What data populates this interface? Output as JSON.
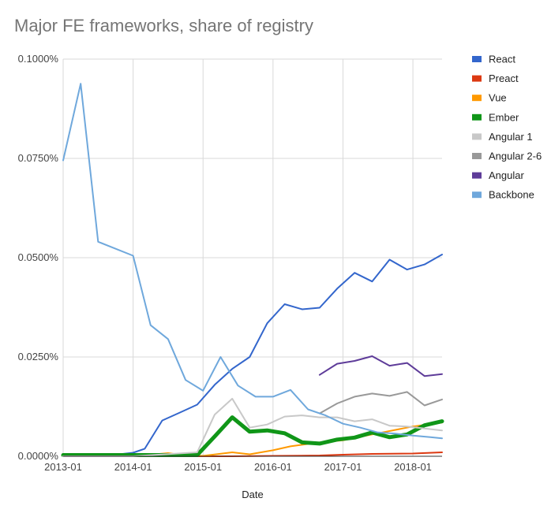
{
  "chart_data": {
    "type": "line",
    "title": "Major FE frameworks, share of registry",
    "xlabel": "Date",
    "ylabel": "",
    "x_ticks": [
      "2013-01",
      "2014-01",
      "2015-01",
      "2016-01",
      "2017-01",
      "2018-01"
    ],
    "y_ticks": [
      "0.0000%",
      "0.0250%",
      "0.0500%",
      "0.0750%",
      "0.1000%"
    ],
    "xlim": [
      "2013-01",
      "2018-06"
    ],
    "ylim": [
      0,
      0.1
    ],
    "grid": true,
    "legend_position": "right",
    "series": [
      {
        "name": "React",
        "color": "#3366cc",
        "points": [
          [
            "2013-01",
            0.0004
          ],
          [
            "2013-04",
            0.0004
          ],
          [
            "2013-07",
            0.0004
          ],
          [
            "2013-10",
            0.0004
          ],
          [
            "2014-01",
            0.0009
          ],
          [
            "2014-03",
            0.0019
          ],
          [
            "2014-06",
            0.009
          ],
          [
            "2014-09",
            0.011
          ],
          [
            "2014-12",
            0.013
          ],
          [
            "2015-03",
            0.018
          ],
          [
            "2015-06",
            0.022
          ],
          [
            "2015-09",
            0.025
          ],
          [
            "2015-12",
            0.0335
          ],
          [
            "2016-03",
            0.0383
          ],
          [
            "2016-06",
            0.037
          ],
          [
            "2016-09",
            0.0374
          ],
          [
            "2016-12",
            0.0422
          ],
          [
            "2017-03",
            0.0462
          ],
          [
            "2017-06",
            0.044
          ],
          [
            "2017-09",
            0.0495
          ],
          [
            "2017-12",
            0.047
          ],
          [
            "2018-03",
            0.0483
          ],
          [
            "2018-06",
            0.0508
          ]
        ]
      },
      {
        "name": "Preact",
        "color": "#dc3912",
        "points": [
          [
            "2013-01",
            0
          ],
          [
            "2014-01",
            0
          ],
          [
            "2015-01",
            0
          ],
          [
            "2015-06",
            0
          ],
          [
            "2016-01",
            0.0001
          ],
          [
            "2016-09",
            0.0002
          ],
          [
            "2017-01",
            0.0004
          ],
          [
            "2017-06",
            0.0006
          ],
          [
            "2018-01",
            0.0007
          ],
          [
            "2018-06",
            0.001
          ]
        ]
      },
      {
        "name": "Vue",
        "color": "#ff9900",
        "points": [
          [
            "2013-01",
            0
          ],
          [
            "2014-01",
            0
          ],
          [
            "2014-07",
            0.0008
          ],
          [
            "2014-10",
            0.0002
          ],
          [
            "2015-01",
            0.0001
          ],
          [
            "2015-06",
            0.001
          ],
          [
            "2015-09",
            0.0005
          ],
          [
            "2016-01",
            0.0015
          ],
          [
            "2016-04",
            0.0025
          ],
          [
            "2016-09",
            0.0035
          ],
          [
            "2017-01",
            0.004
          ],
          [
            "2017-06",
            0.0055
          ],
          [
            "2018-01",
            0.0075
          ],
          [
            "2018-06",
            0.0085
          ]
        ]
      },
      {
        "name": "Ember",
        "color": "#109618",
        "points": [
          [
            "2013-01",
            0.0003
          ],
          [
            "2014-01",
            0.0003
          ],
          [
            "2014-12",
            0.0003
          ],
          [
            "2015-03",
            0.005
          ],
          [
            "2015-06",
            0.0098
          ],
          [
            "2015-09",
            0.0062
          ],
          [
            "2015-12",
            0.0065
          ],
          [
            "2016-03",
            0.0058
          ],
          [
            "2016-06",
            0.0035
          ],
          [
            "2016-09",
            0.0032
          ],
          [
            "2016-12",
            0.0042
          ],
          [
            "2017-03",
            0.0047
          ],
          [
            "2017-06",
            0.006
          ],
          [
            "2017-09",
            0.0048
          ],
          [
            "2017-12",
            0.0055
          ],
          [
            "2018-03",
            0.0078
          ],
          [
            "2018-06",
            0.0088
          ]
        ]
      },
      {
        "name": "Angular 1",
        "color": "#c8c8c8",
        "points": [
          [
            "2013-01",
            0
          ],
          [
            "2014-01",
            0
          ],
          [
            "2014-12",
            0.001
          ],
          [
            "2015-03",
            0.0105
          ],
          [
            "2015-06",
            0.0145
          ],
          [
            "2015-09",
            0.0072
          ],
          [
            "2015-12",
            0.008
          ],
          [
            "2016-03",
            0.01
          ],
          [
            "2016-06",
            0.0103
          ],
          [
            "2016-09",
            0.0098
          ],
          [
            "2016-12",
            0.0098
          ],
          [
            "2017-03",
            0.0088
          ],
          [
            "2017-06",
            0.0093
          ],
          [
            "2017-09",
            0.0077
          ],
          [
            "2017-12",
            0.0075
          ],
          [
            "2018-03",
            0.007
          ],
          [
            "2018-06",
            0.0065
          ]
        ]
      },
      {
        "name": "Angular 2-6",
        "color": "#999999",
        "points": [
          [
            "2016-09",
            0.0108
          ],
          [
            "2016-12",
            0.0133
          ],
          [
            "2017-03",
            0.015
          ],
          [
            "2017-06",
            0.0158
          ],
          [
            "2017-09",
            0.0152
          ],
          [
            "2017-12",
            0.0162
          ],
          [
            "2018-03",
            0.0128
          ],
          [
            "2018-06",
            0.0143
          ]
        ]
      },
      {
        "name": "Angular",
        "color": "#5e3c99",
        "points": [
          [
            "2016-09",
            0.0205
          ],
          [
            "2016-12",
            0.0233
          ],
          [
            "2017-03",
            0.024
          ],
          [
            "2017-06",
            0.0252
          ],
          [
            "2017-09",
            0.0228
          ],
          [
            "2017-12",
            0.0235
          ],
          [
            "2018-03",
            0.0202
          ],
          [
            "2018-06",
            0.0207
          ]
        ]
      },
      {
        "name": "Backbone",
        "color": "#6fa8dc",
        "points": [
          [
            "2013-01",
            0.0745
          ],
          [
            "2013-04",
            0.0938
          ],
          [
            "2013-07",
            0.054
          ],
          [
            "2014-01",
            0.0505
          ],
          [
            "2014-04",
            0.033
          ],
          [
            "2014-07",
            0.0295
          ],
          [
            "2014-10",
            0.0192
          ],
          [
            "2015-01",
            0.0165
          ],
          [
            "2015-04",
            0.025
          ],
          [
            "2015-07",
            0.0178
          ],
          [
            "2015-10",
            0.015
          ],
          [
            "2016-01",
            0.015
          ],
          [
            "2016-04",
            0.0167
          ],
          [
            "2016-07",
            0.0118
          ],
          [
            "2016-10",
            0.0103
          ],
          [
            "2017-01",
            0.0082
          ],
          [
            "2017-04",
            0.0072
          ],
          [
            "2017-07",
            0.006
          ],
          [
            "2017-10",
            0.0057
          ],
          [
            "2018-01",
            0.0052
          ],
          [
            "2018-04",
            0.0048
          ],
          [
            "2018-06",
            0.0045
          ]
        ]
      }
    ]
  }
}
